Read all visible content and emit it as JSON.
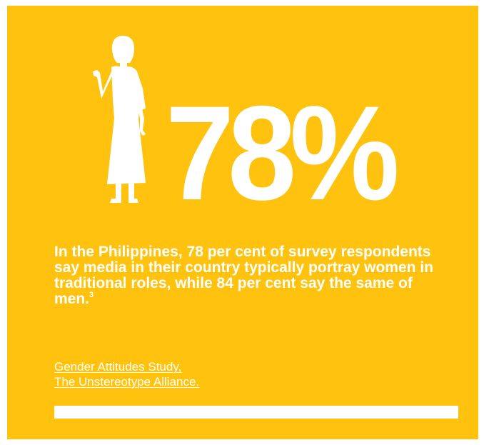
{
  "colors": {
    "background": "#FFC20E",
    "foreground": "#FFFFFF"
  },
  "icon": "woman-figure-icon",
  "stat": {
    "value": "78%"
  },
  "description": {
    "text": "In the Philippines, 78 per cent of survey respondents say media in their country typically portray women in traditional roles, while 84 per cent say the same of men.",
    "footnote": "3"
  },
  "source": {
    "line1": "Gender Attitudes Study,",
    "line2": "The Unstereotype Alliance."
  }
}
